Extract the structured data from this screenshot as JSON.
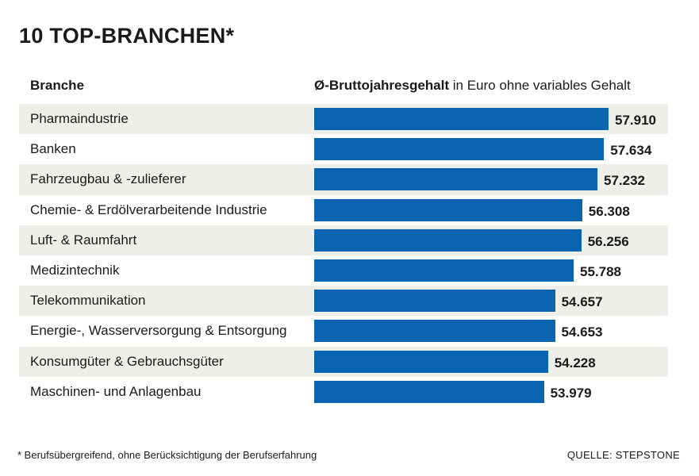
{
  "title": "10 TOP-BRANCHEN*",
  "header": {
    "branche": "Branche",
    "salary_bold": "Ø-Bruttojahresgehalt",
    "salary_rest": "in Euro ohne variables Gehalt"
  },
  "chart_data": {
    "type": "bar",
    "orientation": "horizontal",
    "title": "10 TOP-BRANCHEN*",
    "xlabel": "Ø-Bruttojahresgehalt in Euro ohne variables Gehalt",
    "ylabel": "Branche",
    "categories": [
      "Pharmaindustrie",
      "Banken",
      "Fahrzeugbau & -zulieferer",
      "Chemie- & Erdölverarbeitende Industrie",
      "Luft- & Raumfahrt",
      "Medizintechnik",
      "Telekommunikation",
      "Energie-, Wasserversorgung & Entsorgung",
      "Konsumgüter & Gebrauchsgüter",
      "Maschinen- und Anlagenbau"
    ],
    "values": [
      57910,
      57634,
      57232,
      56308,
      56256,
      55788,
      54657,
      54653,
      54228,
      53979
    ],
    "value_labels": [
      "57.910",
      "57.634",
      "57.232",
      "56.308",
      "56.256",
      "55.788",
      "54.657",
      "54.653",
      "54.228",
      "53.979"
    ],
    "bar_color": "#0b64b0",
    "row_shade_color": "#efefea"
  },
  "footnote": "* Berufsübergreifend, ohne Berücksichtigung der Berufserfahrung",
  "source": "QUELLE: STEPSTONE"
}
